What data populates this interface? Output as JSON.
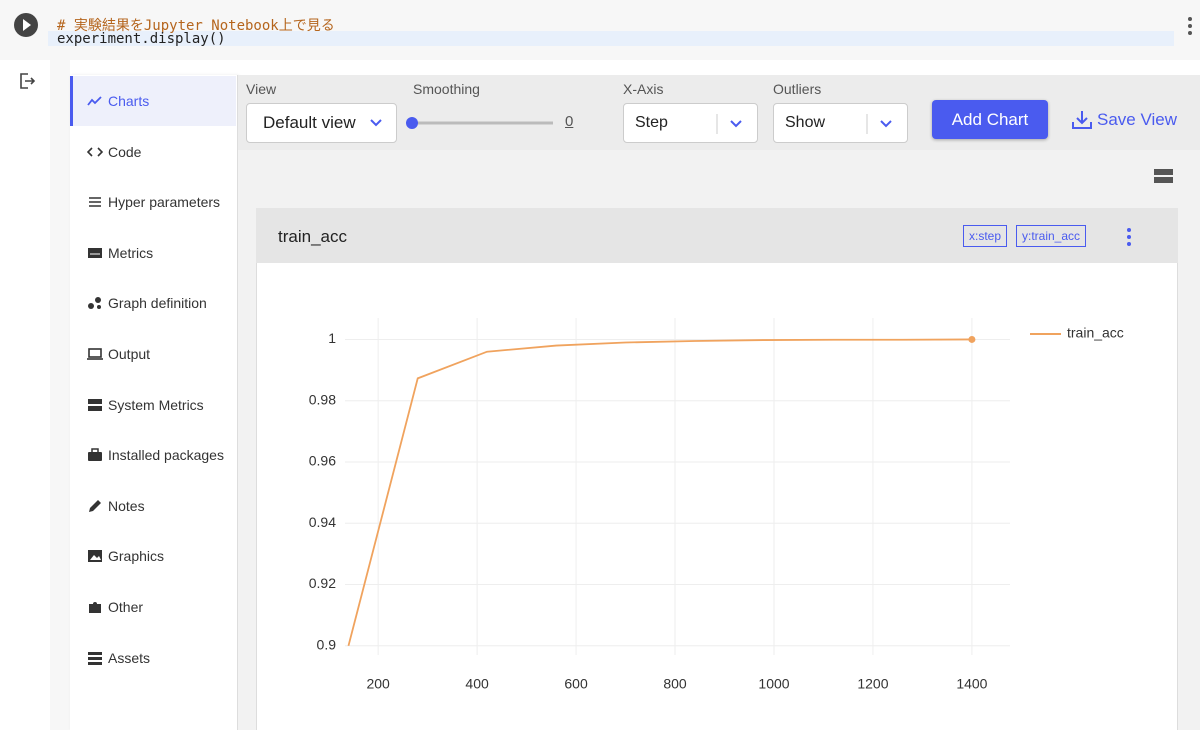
{
  "code_cell": {
    "comment": "# 実験結果をJupyter Notebook上で見る",
    "code": "experiment.display()"
  },
  "sidebar": {
    "items": [
      "Charts",
      "Code",
      "Hyper parameters",
      "Metrics",
      "Graph definition",
      "Output",
      "System Metrics",
      "Installed packages",
      "Notes",
      "Graphics",
      "Other",
      "Assets"
    ]
  },
  "toolbar": {
    "view_label": "View",
    "view_value": "Default view",
    "smoothing_label": "Smoothing",
    "smoothing_value": 0,
    "xaxis_label": "X-Axis",
    "xaxis_value": "Step",
    "outliers_label": "Outliers",
    "outliers_value": "Show",
    "add_chart": "Add Chart",
    "save_view": "Save View"
  },
  "card": {
    "title": "train_acc",
    "tags": [
      "x:step",
      "y:train_acc"
    ]
  },
  "chart_data": {
    "type": "line",
    "x": [
      140,
      280,
      420,
      560,
      700,
      840,
      980,
      1120,
      1260,
      1400
    ],
    "series": [
      {
        "name": "train_acc",
        "color": "#f0a35e",
        "values": [
          0.9,
          0.9873,
          0.996,
          0.998,
          0.999,
          0.9995,
          0.9998,
          0.9999,
          0.9999,
          1.0
        ]
      }
    ],
    "xlim": [
      133,
      1477
    ],
    "ylim": [
      0.897,
      1.007
    ],
    "xticks": [
      200,
      400,
      600,
      800,
      1000,
      1200,
      1400
    ],
    "yticks": [
      0.9,
      0.92,
      0.94,
      0.96,
      0.98,
      1
    ],
    "grid": true,
    "legend": "right"
  }
}
